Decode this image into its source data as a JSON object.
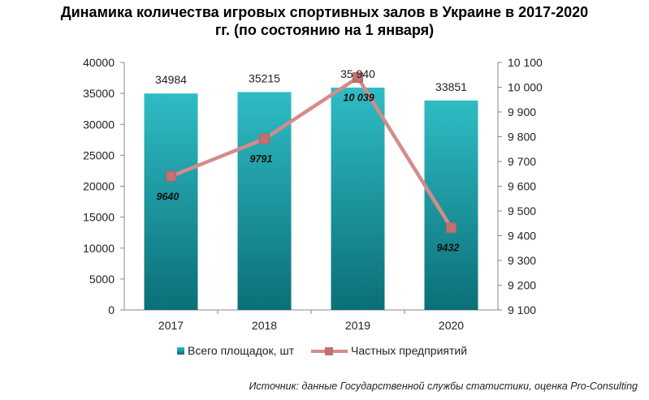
{
  "chart_data": {
    "type": "bar",
    "title_line1": "Динамика количества игровых спортивных залов в Украине в 2017-2020",
    "title_line2": "гг. (по состоянию на 1 января)",
    "categories": [
      "2017",
      "2018",
      "2019",
      "2020"
    ],
    "series": [
      {
        "name": "Всего площадок, шт",
        "type": "bar",
        "axis": "left",
        "values": [
          34984,
          35215,
          35940,
          33851
        ],
        "labels": [
          "34984",
          "35215",
          "35 940",
          "33851"
        ]
      },
      {
        "name": "Частных предприятий",
        "type": "line",
        "axis": "right",
        "values": [
          9640,
          9791,
          10039,
          9432
        ],
        "labels": [
          "9640",
          "9791",
          "10 039",
          "9432"
        ]
      }
    ],
    "y_left": {
      "min": 0,
      "max": 40000,
      "step": 5000,
      "ticks": [
        "0",
        "5000",
        "10000",
        "15000",
        "20000",
        "25000",
        "30000",
        "35000",
        "40000"
      ]
    },
    "y_right": {
      "min": 9100,
      "max": 10100,
      "step": 100,
      "ticks": [
        "9 100",
        "9 200",
        "9 300",
        "9 400",
        "9 500",
        "9 600",
        "9 700",
        "9 800",
        "9 900",
        "10 000",
        "10 100"
      ]
    },
    "legend_position": "bottom",
    "colors": {
      "bar_top": "#2fbcc4",
      "bar_bottom": "#0b6f78",
      "line": "#d48c8a",
      "marker": "#c07272"
    }
  },
  "source_text": "Источник: данные Государственной службы статистики, оценка Pro-Consulting"
}
